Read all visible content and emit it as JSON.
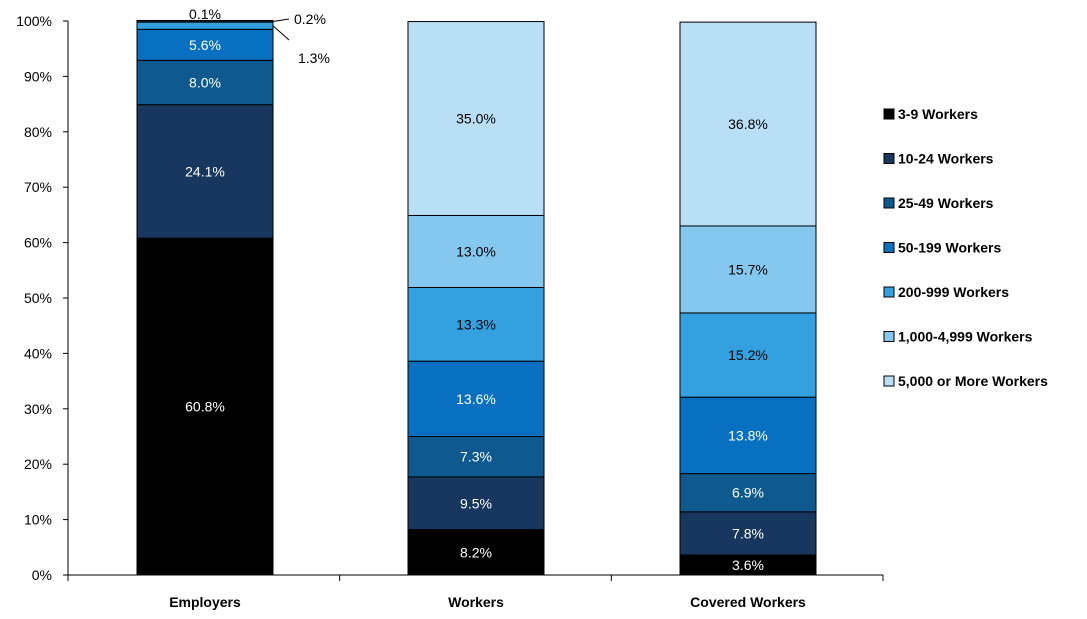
{
  "chart_data": {
    "type": "bar",
    "stacked": true,
    "categories": [
      "Employers",
      "Workers",
      "Covered Workers"
    ],
    "series": [
      {
        "name": "3-9 Workers",
        "color": "#000000",
        "values": [
          60.8,
          8.2,
          3.6
        ],
        "labels": [
          "60.8%",
          "8.2%",
          "3.6%"
        ]
      },
      {
        "name": "10-24 Workers",
        "color": "#17375e",
        "values": [
          24.1,
          9.5,
          7.8
        ],
        "labels": [
          "24.1%",
          "9.5%",
          "7.8%"
        ]
      },
      {
        "name": "25-49 Workers",
        "color": "#0e5a8e",
        "values": [
          8.0,
          7.3,
          6.9
        ],
        "labels": [
          "8.0%",
          "7.3%",
          "6.9%"
        ]
      },
      {
        "name": "50-199 Workers",
        "color": "#0870c0",
        "values": [
          5.6,
          13.6,
          13.8
        ],
        "labels": [
          "5.6%",
          "13.6%",
          "13.8%"
        ]
      },
      {
        "name": "200-999 Workers",
        "color": "#33a1e0",
        "values": [
          1.3,
          13.3,
          15.2
        ],
        "labels": [
          "1.3%",
          "13.3%",
          "15.2%"
        ]
      },
      {
        "name": "1,000-4,999 Workers",
        "color": "#84c7ef",
        "values": [
          0.2,
          13.0,
          15.7
        ],
        "labels": [
          "0.2%",
          "13.0%",
          "15.7%"
        ]
      },
      {
        "name": "5,000 or More Workers",
        "color": "#b8dff5",
        "values": [
          0.1,
          35.0,
          36.8
        ],
        "labels": [
          "0.1%",
          "35.0%",
          "36.8%"
        ]
      }
    ],
    "y_ticks": [
      "0%",
      "10%",
      "20%",
      "30%",
      "40%",
      "50%",
      "60%",
      "70%",
      "80%",
      "90%",
      "100%"
    ],
    "ylim": [
      0,
      100
    ],
    "legend_position": "right",
    "grid": false
  }
}
